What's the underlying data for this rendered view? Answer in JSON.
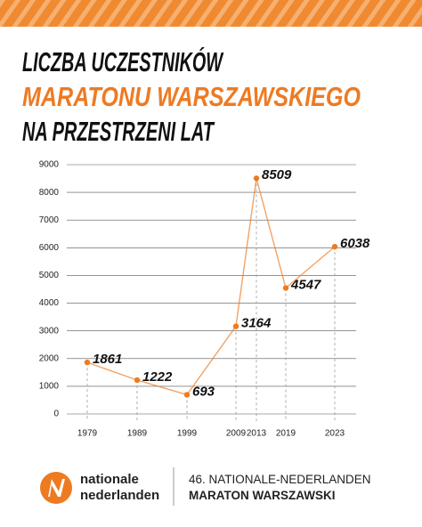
{
  "title_lines": [
    "LICZBA UCZESTNIKÓW",
    "MARATONU WARSZAWSKIEGO",
    "NA PRZESTRZENI LAT"
  ],
  "chart_data": {
    "type": "line",
    "categories": [
      "1979",
      "1989",
      "1999",
      "2009",
      "2013",
      "2019",
      "2023"
    ],
    "series": [
      {
        "name": "Liczba uczestników",
        "color": "#ee7a22",
        "values": [
          1861,
          1222,
          693,
          3164,
          8509,
          4547,
          6038
        ]
      }
    ],
    "ylim": [
      0,
      9000
    ],
    "yticks": [
      0,
      1000,
      2000,
      3000,
      4000,
      5000,
      6000,
      7000,
      8000,
      9000
    ],
    "grid": true
  },
  "footer": {
    "brand_lines": [
      "nationale",
      "nederlanden"
    ],
    "event_lines": [
      "46. NATIONALE-NEDERLANDEN",
      "MARATON WARSZAWSKI"
    ]
  }
}
